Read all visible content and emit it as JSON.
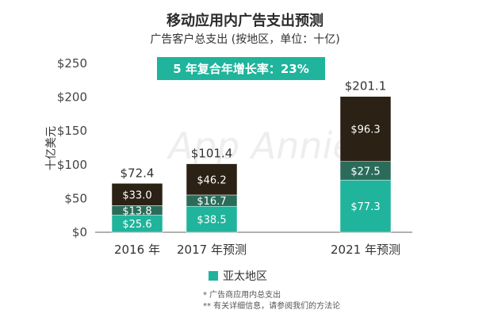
{
  "title": "移动应用内广告支出预测",
  "subtitle": "广告客户总支出 (按地区，单位：十亿)",
  "banner": "5 年复合年增长率：23%",
  "watermark": "App Annie",
  "legend": {
    "label": "亚太地区",
    "color": "#1fb49b"
  },
  "notes": [
    "*  广告商应用内总支出",
    "**  有关详细信息，请参阅我们的方法论"
  ],
  "chart_data": {
    "type": "bar",
    "stacked": true,
    "ylabel": "十亿美元",
    "ylim": [
      0,
      250
    ],
    "yticks": [
      "$0",
      "$50",
      "$100",
      "$150",
      "$200",
      "$250"
    ],
    "ytick_values": [
      0,
      50,
      100,
      150,
      200,
      250
    ],
    "categories": [
      "2016 年",
      "2017 年预测",
      "2021 年预测"
    ],
    "totals": [
      72.4,
      101.4,
      201.1
    ],
    "total_labels": [
      "$72.4",
      "$101.4",
      "$201.1"
    ],
    "series": [
      {
        "name": "亚太地区",
        "values": [
          25.6,
          38.5,
          77.3
        ],
        "labels": [
          "$25.6",
          "$38.5",
          "$77.3"
        ],
        "color": "#1fb49b"
      },
      {
        "values": [
          13.8,
          16.7,
          27.5
        ],
        "labels": [
          "$13.8",
          "$16.7",
          "$27.5"
        ],
        "color": "#2b6b5a"
      },
      {
        "values": [
          33.0,
          46.2,
          96.3
        ],
        "labels": [
          "$33.0",
          "$46.2",
          "$96.3"
        ],
        "color": "#2b2114"
      }
    ]
  }
}
